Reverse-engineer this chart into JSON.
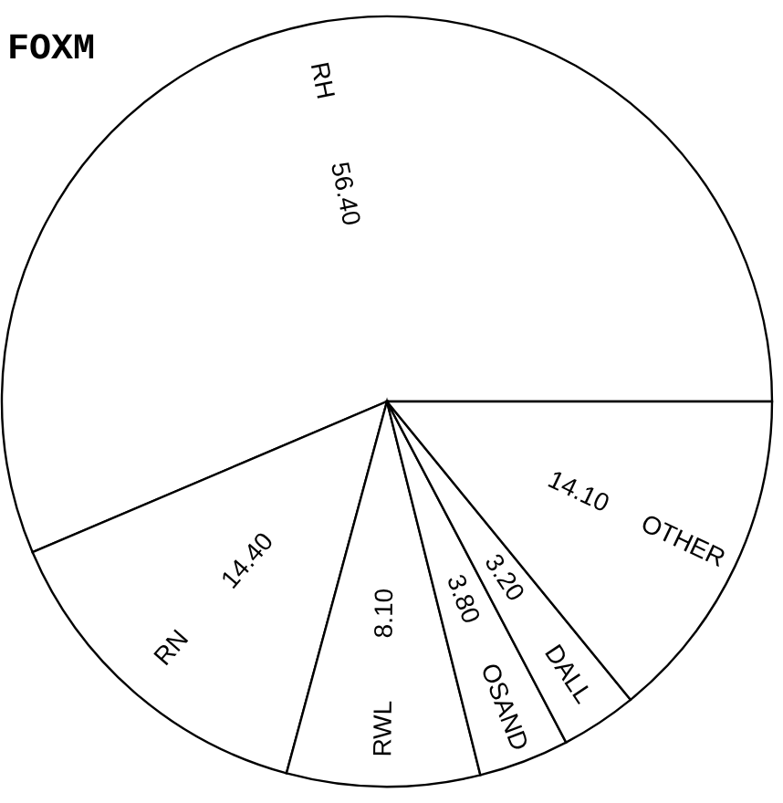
{
  "chart_data": {
    "type": "pie",
    "title": "FOXM",
    "categories": [
      "RH",
      "RN",
      "RWL",
      "OSAND",
      "DALL",
      "OTHER"
    ],
    "values": [
      56.4,
      14.4,
      8.1,
      3.8,
      3.2,
      14.1
    ],
    "value_labels": [
      "56.40",
      "14.40",
      "8.10",
      "3.80",
      "3.20",
      "14.10"
    ],
    "colors": [
      "#ffffff",
      "#ffffff",
      "#ffffff",
      "#ffffff",
      "#ffffff",
      "#ffffff"
    ]
  }
}
